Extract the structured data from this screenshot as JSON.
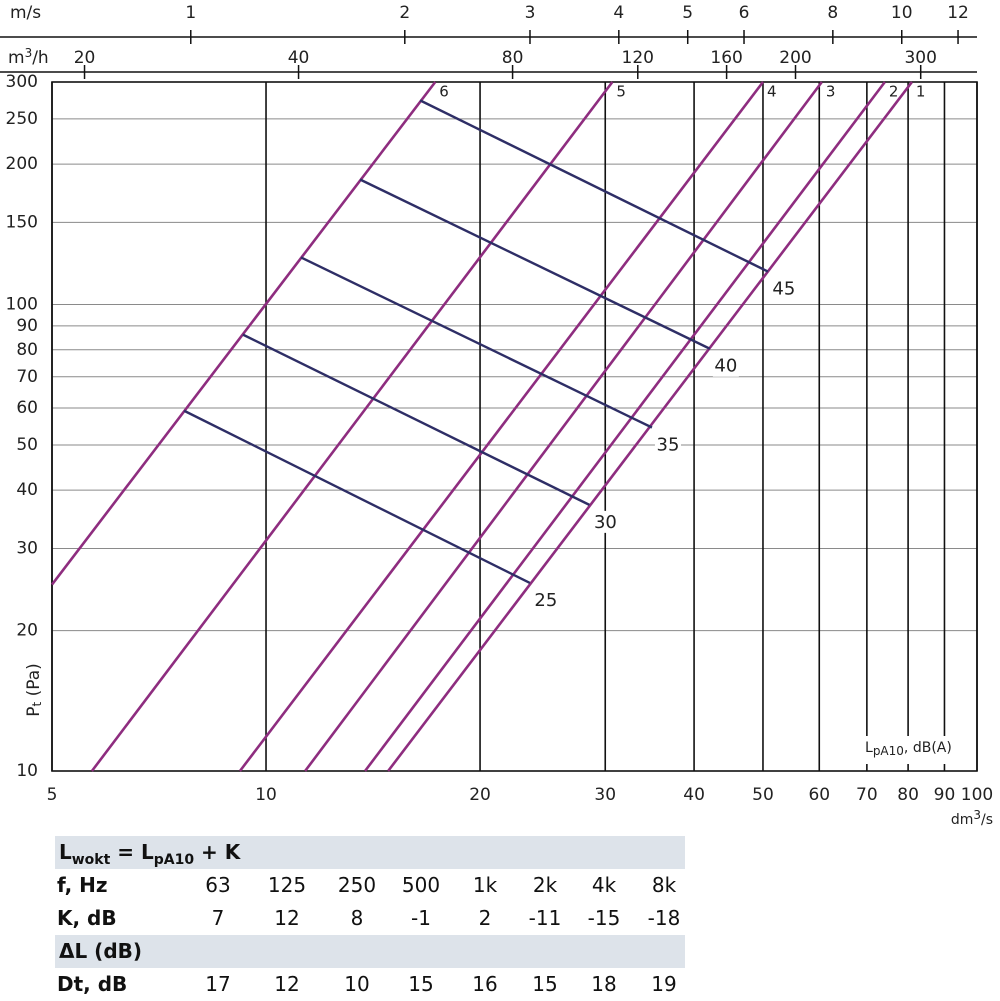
{
  "chart_data": {
    "type": "line",
    "xlog": true,
    "ylog": true,
    "xlim": [
      5,
      100
    ],
    "ylim": [
      10,
      300
    ],
    "xticks": [
      5,
      10,
      20,
      30,
      40,
      50,
      60,
      70,
      80,
      90,
      100
    ],
    "yticks": [
      10,
      20,
      30,
      40,
      50,
      60,
      70,
      80,
      90,
      100,
      150,
      200,
      250,
      300
    ],
    "grid": true,
    "x_label": [
      "dm",
      "3",
      "/s"
    ],
    "y_label": [
      "P",
      "t",
      " (Pa)"
    ],
    "annotation": [
      "L",
      "pA10",
      ", dB(A)"
    ],
    "top_axes": [
      {
        "label": [
          "m/s"
        ],
        "lim": [
          0.638,
          12.76
        ],
        "ticks": [
          1,
          2,
          3,
          4,
          5,
          6,
          8,
          10,
          12
        ]
      },
      {
        "label": [
          "m",
          "3",
          "/h"
        ],
        "lim": [
          18,
          360
        ],
        "ticks": [
          20,
          40,
          80,
          120,
          160,
          200,
          300
        ]
      }
    ],
    "series": [
      {
        "name": "1",
        "color": "#8e2d7f",
        "x": [
          14.85,
          81.0
        ],
        "values": [
          10,
          300
        ]
      },
      {
        "name": "2",
        "color": "#8e2d7f",
        "x": [
          13.78,
          74.2
        ],
        "values": [
          10,
          300
        ]
      },
      {
        "name": "3",
        "color": "#8e2d7f",
        "x": [
          11.35,
          60.5
        ],
        "values": [
          10,
          300
        ]
      },
      {
        "name": "4",
        "color": "#8e2d7f",
        "x": [
          9.19,
          50
        ],
        "values": [
          10,
          300
        ]
      },
      {
        "name": "5",
        "color": "#8e2d7f",
        "x": [
          5.69,
          30.7
        ],
        "values": [
          10,
          300
        ]
      },
      {
        "name": "6",
        "color": "#8e2d7f",
        "x": [
          5,
          17.3
        ],
        "values": [
          25.1,
          300
        ]
      }
    ],
    "sound_series": [
      {
        "name": "25",
        "color": "#2e2e66",
        "x": [
          7.67,
          23.5
        ],
        "values": [
          59.2,
          25.3
        ]
      },
      {
        "name": "30",
        "color": "#2e2e66",
        "x": [
          9.28,
          28.5
        ],
        "values": [
          86.2,
          37.2
        ]
      },
      {
        "name": "35",
        "color": "#2e2e66",
        "x": [
          11.2,
          34.9
        ],
        "values": [
          126.2,
          54.5
        ]
      },
      {
        "name": "40",
        "color": "#2e2e66",
        "x": [
          13.56,
          42.1
        ],
        "values": [
          185.4,
          80.4
        ]
      },
      {
        "name": "45",
        "color": "#2e2e66",
        "x": [
          16.47,
          50.8
        ],
        "values": [
          274,
          117.7
        ]
      }
    ]
  },
  "table": {
    "formula": [
      "L",
      "wokt",
      " = L",
      "pA10",
      " + K"
    ],
    "rows": [
      [
        "f, Hz",
        "63",
        "125",
        "250",
        "500",
        "1k",
        "2k",
        "4k",
        "8k"
      ],
      [
        "K, dB",
        "7",
        "12",
        "8",
        "-1",
        "2",
        "-11",
        "-15",
        "-18"
      ]
    ],
    "section": "ΔL (dB)",
    "rows2": [
      [
        "Dt, dB",
        "17",
        "12",
        "10",
        "15",
        "16",
        "15",
        "18",
        "19"
      ]
    ]
  }
}
